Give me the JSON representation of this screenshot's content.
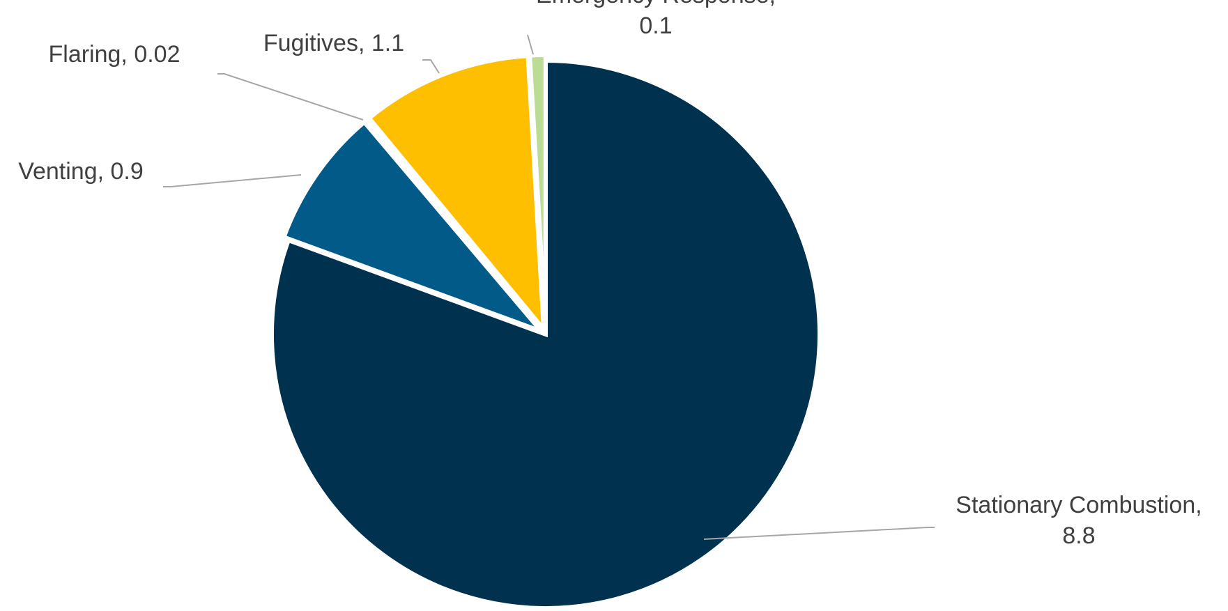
{
  "chart_data": {
    "type": "pie",
    "start_angle_deg": 0,
    "direction": "clockwise",
    "slices": [
      {
        "category": "Stationary Combustion",
        "value": 8.8,
        "value_label": "8.8",
        "color": "#00324f",
        "exploded": false,
        "label_lines": [
          "Stationary Combustion,",
          "8.8"
        ]
      },
      {
        "category": "Venting",
        "value": 0.9,
        "value_label": "0.9",
        "color": "#015a88",
        "exploded": true,
        "label_lines": [
          "Venting,  0.9"
        ]
      },
      {
        "category": "Flaring",
        "value": 0.02,
        "value_label": "0.02",
        "color": "#015a88",
        "exploded": true,
        "label_lines": [
          "Flaring,  0.02"
        ]
      },
      {
        "category": "Fugitives",
        "value": 1.1,
        "value_label": "1.1",
        "color": "#fdbf00",
        "exploded": true,
        "label_lines": [
          "Fugitives,  1.1"
        ]
      },
      {
        "category": "Emergency Response",
        "value": 0.1,
        "value_label": "0.1",
        "color": "#badc94",
        "exploded": true,
        "label_lines": [
          "Emergency Response,",
          "0.1"
        ]
      }
    ],
    "legend": "none",
    "data_labels": "category and value, outside end with leader lines"
  }
}
